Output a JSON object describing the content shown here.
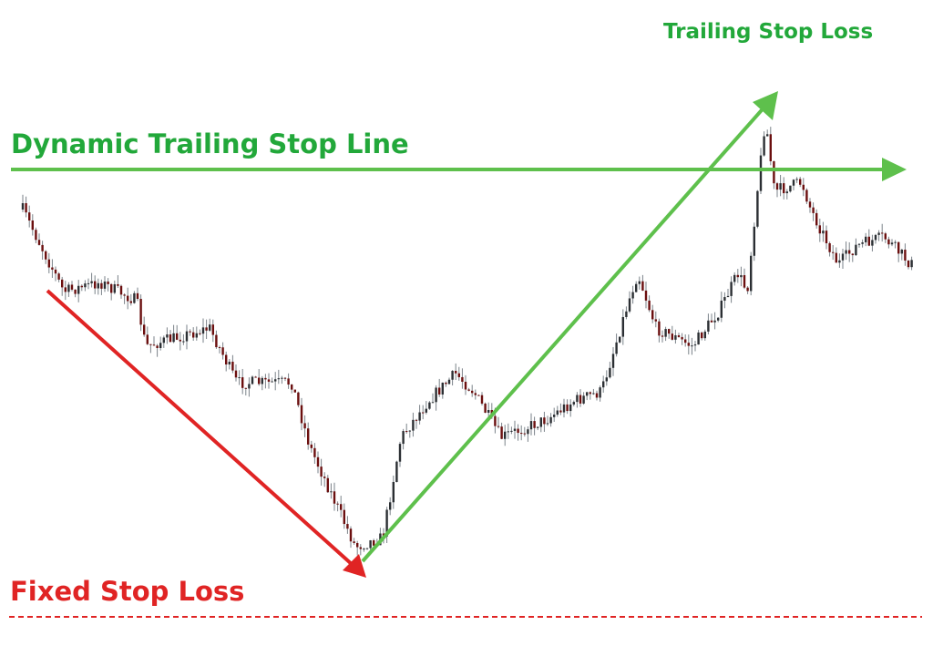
{
  "labels": {
    "trailing_stop_loss": "Trailing Stop Loss",
    "dynamic_trailing_stop_line": "Dynamic Trailing Stop Line",
    "fixed_stop_loss": "Fixed Stop Loss"
  },
  "colors": {
    "label_green": "#22a83a",
    "arrow_green": "#5ec04c",
    "red": "#e02424",
    "bull_candle": "#2b2f33",
    "bear_candle": "#6b0f0f"
  },
  "elements": {
    "candlestick_chart": "price candlesticks trending down then up",
    "downtrend_arrow": "red diagonal arrow",
    "uptrend_arrow": "green diagonal arrow",
    "trailing_stop_line": "horizontal green arrow",
    "fixed_stop_line": "red dashed horizontal line"
  }
}
